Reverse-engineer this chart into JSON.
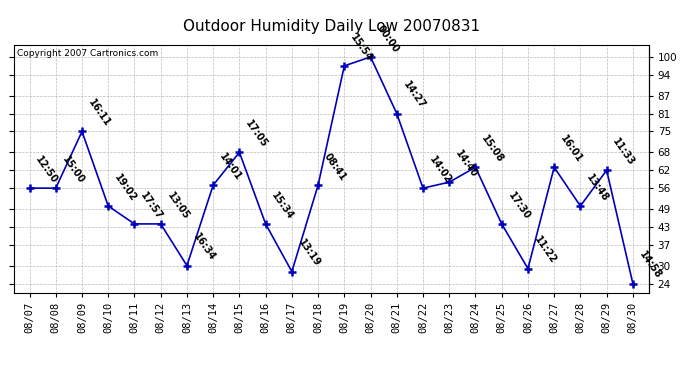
{
  "title": "Outdoor Humidity Daily Low 20070831",
  "copyright": "Copyright 2007 Cartronics.com",
  "x_labels": [
    "08/07",
    "08/08",
    "08/09",
    "08/10",
    "08/11",
    "08/12",
    "08/13",
    "08/14",
    "08/15",
    "08/16",
    "08/17",
    "08/18",
    "08/19",
    "08/20",
    "08/21",
    "08/22",
    "08/23",
    "08/24",
    "08/25",
    "08/26",
    "08/27",
    "08/28",
    "08/29",
    "08/30"
  ],
  "y_values": [
    56,
    56,
    75,
    50,
    44,
    44,
    30,
    57,
    68,
    44,
    28,
    57,
    97,
    100,
    81,
    56,
    58,
    63,
    44,
    29,
    63,
    50,
    62,
    24
  ],
  "point_labels": [
    "12:50",
    "15:00",
    "16:11",
    "19:02",
    "17:57",
    "13:05",
    "16:34",
    "14:01",
    "17:05",
    "15:34",
    "13:19",
    "08:41",
    "15:54",
    "00:00",
    "14:27",
    "14:02",
    "14:40",
    "15:08",
    "17:30",
    "11:22",
    "16:01",
    "13:48",
    "11:33",
    "14:58"
  ],
  "line_color": "#0000bb",
  "marker_color": "#0000bb",
  "background_color": "#ffffff",
  "grid_color": "#bbbbbb",
  "yticks": [
    24,
    30,
    37,
    43,
    49,
    56,
    62,
    68,
    75,
    81,
    87,
    94,
    100
  ],
  "ylim": [
    21,
    104
  ],
  "title_fontsize": 11,
  "label_fontsize": 7,
  "copyright_fontsize": 6.5,
  "tick_fontsize": 7.5
}
